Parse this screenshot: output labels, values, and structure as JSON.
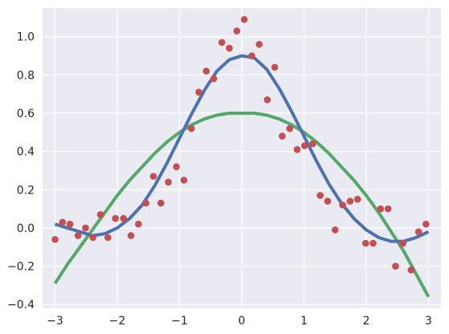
{
  "chart_data": {
    "type": "scatter",
    "title": "",
    "xlabel": "",
    "ylabel": "",
    "xlim": [
      -3.2,
      3.2
    ],
    "ylim": [
      -0.42,
      1.15
    ],
    "grid": true,
    "legend": "none",
    "x_ticks": [
      -3,
      -2,
      -1,
      0,
      1,
      2,
      3
    ],
    "y_ticks": [
      -0.4,
      -0.2,
      0.0,
      0.2,
      0.4,
      0.6,
      0.8,
      1.0
    ],
    "x_tick_labels": [
      "−3",
      "−2",
      "−1",
      "0",
      "1",
      "2",
      "3"
    ],
    "y_tick_labels": [
      "−0.4",
      "−0.2",
      "0.0",
      "0.2",
      "0.4",
      "0.6",
      "0.8",
      "1.0"
    ],
    "colors": {
      "plot_background": "#eaeaf2",
      "grid": "#ffffff",
      "scatter": "#c44e52",
      "fit_line": "#4c72b0",
      "smooth_line": "#55a868"
    },
    "series": [
      {
        "kind": "scatter",
        "x": [
          -3.0,
          -2.88,
          -2.76,
          -2.63,
          -2.51,
          -2.39,
          -2.27,
          -2.15,
          -2.03,
          -1.9,
          -1.78,
          -1.66,
          -1.54,
          -1.42,
          -1.3,
          -1.18,
          -1.05,
          -0.93,
          -0.81,
          -0.69,
          -0.57,
          -0.45,
          -0.32,
          -0.2,
          -0.08,
          0.04,
          0.16,
          0.28,
          0.41,
          0.53,
          0.65,
          0.77,
          0.89,
          1.01,
          1.14,
          1.26,
          1.38,
          1.5,
          1.62,
          1.74,
          1.86,
          1.99,
          2.11,
          2.23,
          2.35,
          2.47,
          2.59,
          2.72,
          2.84,
          2.96
        ],
        "y": [
          -0.06,
          0.03,
          0.02,
          -0.04,
          0.0,
          -0.05,
          0.07,
          -0.05,
          0.05,
          0.05,
          -0.04,
          0.02,
          0.13,
          0.27,
          0.13,
          0.24,
          0.32,
          0.25,
          0.52,
          0.71,
          0.82,
          0.78,
          0.97,
          0.94,
          1.03,
          1.09,
          0.9,
          0.96,
          0.67,
          0.84,
          0.48,
          0.52,
          0.41,
          0.43,
          0.44,
          0.17,
          0.14,
          -0.01,
          0.12,
          0.14,
          0.15,
          -0.08,
          -0.08,
          0.1,
          0.1,
          -0.2,
          -0.08,
          -0.22,
          -0.02,
          0.02
        ]
      },
      {
        "kind": "line",
        "color_key": "fit_line",
        "x": [
          -3.0,
          -2.8,
          -2.6,
          -2.4,
          -2.2,
          -2.0,
          -1.8,
          -1.6,
          -1.4,
          -1.2,
          -1.0,
          -0.8,
          -0.6,
          -0.4,
          -0.2,
          0.0,
          0.2,
          0.4,
          0.6,
          0.8,
          1.0,
          1.2,
          1.4,
          1.6,
          1.8,
          2.0,
          2.2,
          2.4,
          2.6,
          2.8,
          3.0
        ],
        "y": [
          0.02,
          0.0,
          -0.02,
          -0.04,
          -0.03,
          0.0,
          0.05,
          0.12,
          0.22,
          0.34,
          0.47,
          0.6,
          0.72,
          0.82,
          0.88,
          0.9,
          0.89,
          0.83,
          0.73,
          0.61,
          0.48,
          0.35,
          0.23,
          0.13,
          0.05,
          -0.01,
          -0.05,
          -0.07,
          -0.07,
          -0.05,
          -0.02
        ]
      },
      {
        "kind": "line",
        "color_key": "smooth_line",
        "x": [
          -3.0,
          -2.8,
          -2.6,
          -2.4,
          -2.2,
          -2.0,
          -1.8,
          -1.6,
          -1.4,
          -1.2,
          -1.0,
          -0.8,
          -0.6,
          -0.4,
          -0.2,
          0.0,
          0.2,
          0.4,
          0.6,
          0.8,
          1.0,
          1.2,
          1.4,
          1.6,
          1.8,
          2.0,
          2.2,
          2.4,
          2.6,
          2.8,
          3.0
        ],
        "y": [
          -0.29,
          -0.19,
          -0.1,
          -0.01,
          0.08,
          0.17,
          0.25,
          0.32,
          0.39,
          0.45,
          0.5,
          0.54,
          0.57,
          0.59,
          0.6,
          0.6,
          0.6,
          0.59,
          0.57,
          0.54,
          0.5,
          0.45,
          0.39,
          0.32,
          0.25,
          0.17,
          0.08,
          -0.02,
          -0.12,
          -0.24,
          -0.36
        ]
      }
    ]
  }
}
